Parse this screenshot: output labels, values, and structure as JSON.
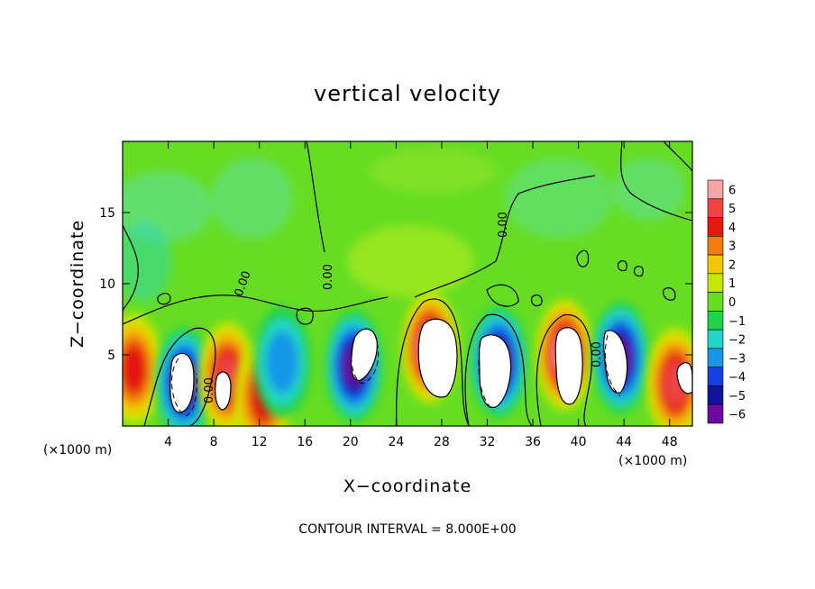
{
  "chart_data": {
    "type": "heatmap",
    "title": "vertical velocity",
    "xlabel": "X−coordinate",
    "ylabel": "Z−coordinate",
    "x_unit_left": "(×1000 m)",
    "x_unit_right": "(×1000 m)",
    "xlim": [
      0,
      50
    ],
    "ylim": [
      0,
      20
    ],
    "x_ticks": [
      4,
      8,
      12,
      16,
      20,
      24,
      28,
      32,
      36,
      40,
      44,
      48
    ],
    "x_tick_labels": [
      "4",
      "8",
      "12",
      "16",
      "20",
      "24",
      "28",
      "32",
      "36",
      "40",
      "44",
      "48"
    ],
    "y_ticks": [
      5,
      10,
      15
    ],
    "y_tick_labels": [
      "5",
      "10",
      "15"
    ],
    "colorbar": {
      "levels": [
        6,
        5,
        4,
        3,
        2,
        1,
        0,
        -1,
        -2,
        -3,
        -4,
        -5,
        -6
      ],
      "labels": [
        "6",
        "5",
        "4",
        "3",
        "2",
        "1",
        "0",
        "−1",
        "−2",
        "−3",
        "−4",
        "−5",
        "−6"
      ],
      "colors": [
        "#f4a6a6",
        "#ef4444",
        "#e4180c",
        "#f07c10",
        "#f2c800",
        "#c6e800",
        "#66dd22",
        "#22d24a",
        "#22d6c6",
        "#1896e8",
        "#1840e0",
        "#12129e",
        "#6e0aa0"
      ]
    },
    "contour_labels": [
      "0.00",
      "0.00",
      "0.00",
      "0.00",
      "0.00",
      "0.00"
    ],
    "footer": "CONTOUR INTERVAL = 8.000E+00",
    "cells": [
      {
        "x": 1.0,
        "z": 4.0,
        "w": 3.5
      },
      {
        "x": 5.4,
        "z": 3.0,
        "w": -6.0
      },
      {
        "x": 9.2,
        "z": 3.4,
        "w": 4.8
      },
      {
        "x": 12.3,
        "z": 2.0,
        "w": 3.5
      },
      {
        "x": 14.0,
        "z": 4.5,
        "w": -3.0
      },
      {
        "x": 20.3,
        "z": 4.2,
        "w": -5.5
      },
      {
        "x": 27.0,
        "z": 5.5,
        "w": 6.0
      },
      {
        "x": 33.0,
        "z": 4.5,
        "w": -5.8
      },
      {
        "x": 38.8,
        "z": 5.0,
        "w": 6.0
      },
      {
        "x": 43.7,
        "z": 4.8,
        "w": -5.8
      },
      {
        "x": 48.5,
        "z": 3.0,
        "w": 4.5
      }
    ]
  }
}
